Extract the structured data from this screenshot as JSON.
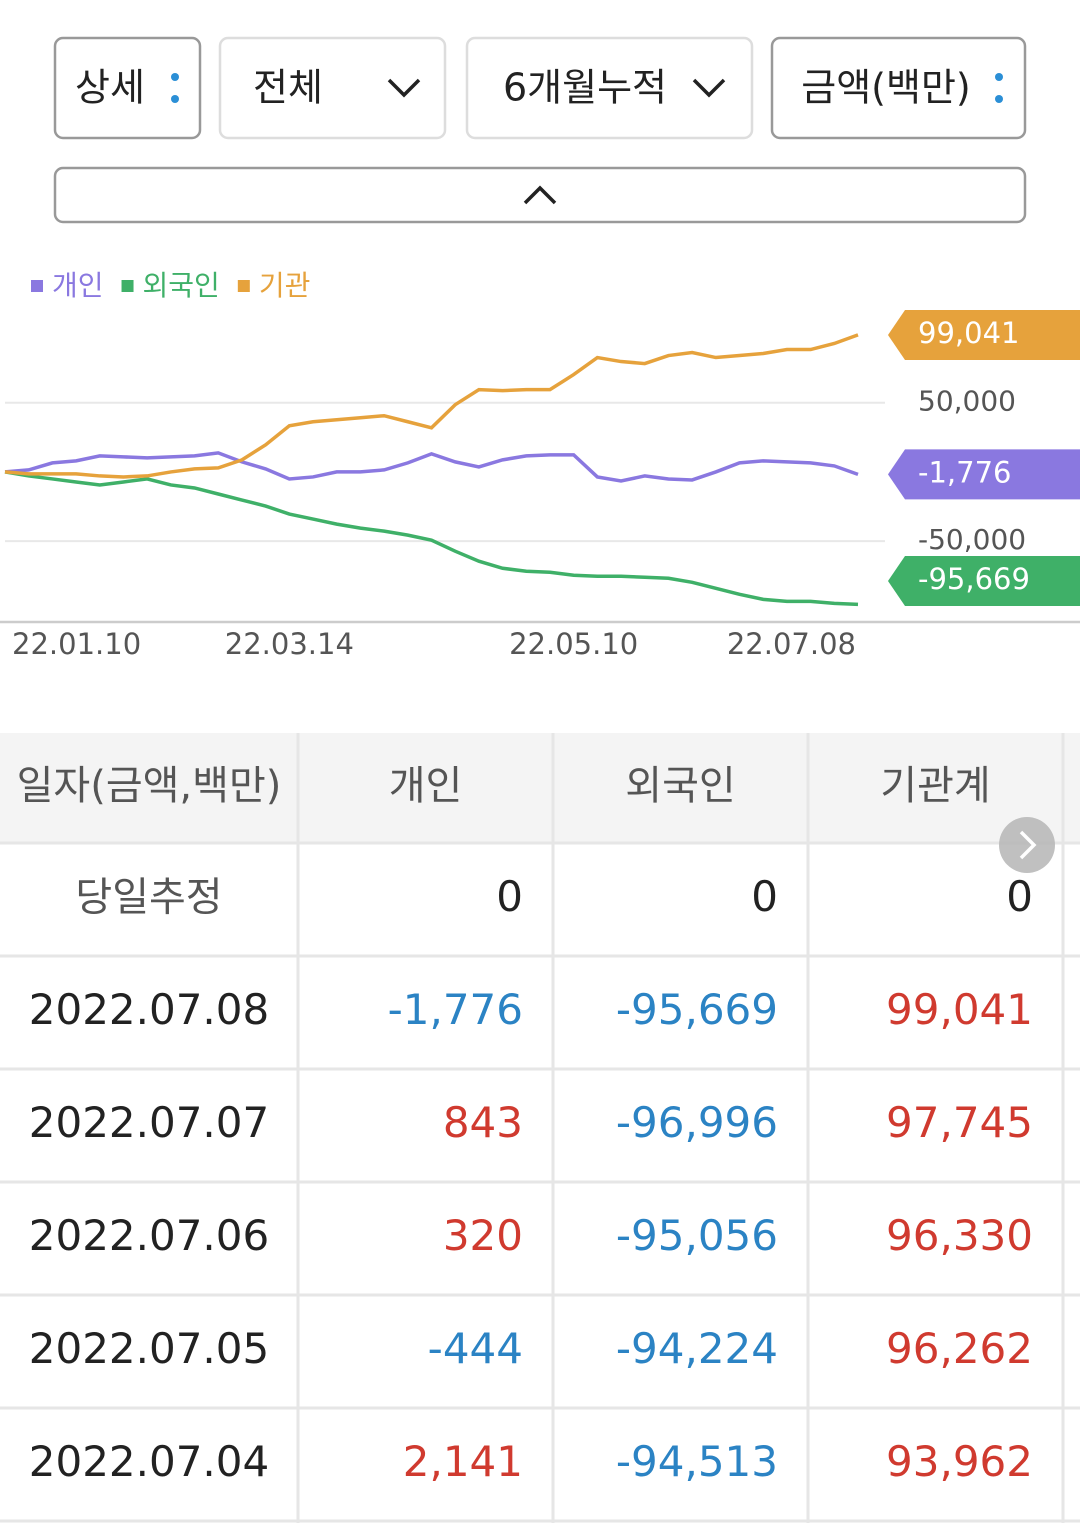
{
  "buttons": [
    {
      "label": "상세"
    },
    {
      "label": "전체"
    },
    {
      "label": "6개월누적"
    },
    {
      "label": "금액(백만)"
    }
  ],
  "chart_data": {
    "type": "line",
    "categories": [
      "22.01.10",
      null,
      null,
      null,
      null,
      null,
      null,
      null,
      null,
      null,
      null,
      null,
      "22.03.14",
      null,
      null,
      null,
      null,
      null,
      null,
      null,
      null,
      null,
      null,
      null,
      "22.05.10",
      null,
      null,
      null,
      null,
      null,
      null,
      null,
      null,
      null,
      null,
      null,
      "22.07.08"
    ],
    "series": [
      {
        "name": "개인",
        "color": "#8a78e0",
        "values": [
          0,
          1450,
          6525,
          7975,
          11600,
          10875,
          10150,
          10875,
          11600,
          13775,
          7250,
          2175,
          -5075,
          -3625,
          0,
          0,
          1450,
          6525,
          13050,
          7250,
          3625,
          8700,
          11600,
          12325,
          12325,
          -3625,
          -6525,
          -2900,
          -5075,
          -5800,
          0,
          6525,
          7975,
          7250,
          6525,
          4350,
          -1776
        ],
        "value_labels": [
          null,
          null,
          null,
          null,
          null,
          null,
          null,
          null,
          null,
          null,
          null,
          null,
          null,
          null,
          null,
          null,
          null,
          null,
          null,
          null,
          null,
          null,
          null,
          null,
          null,
          null,
          null,
          null,
          null,
          null,
          null,
          null,
          null,
          null,
          null,
          null,
          "-1,776"
        ]
      },
      {
        "name": "외국인",
        "color": "#3fb068",
        "values": [
          0,
          -2900,
          -5075,
          -7250,
          -9425,
          -7250,
          -5075,
          -9425,
          -11600,
          -15950,
          -20300,
          -24650,
          -30450,
          -34075,
          -37700,
          -40600,
          -42775,
          -45675,
          -49300,
          -57275,
          -64525,
          -69600,
          -71775,
          -72500,
          -74675,
          -75400,
          -75400,
          -76125,
          -76850,
          -79750,
          -84100,
          -88450,
          -92075,
          -93525,
          -93525,
          -94975,
          -95669
        ],
        "value_labels": [
          null,
          null,
          null,
          null,
          null,
          null,
          null,
          null,
          null,
          null,
          null,
          null,
          null,
          null,
          null,
          null,
          null,
          null,
          null,
          null,
          null,
          null,
          null,
          null,
          null,
          null,
          null,
          null,
          null,
          null,
          null,
          null,
          null,
          null,
          null,
          null,
          "-95,669"
        ]
      },
      {
        "name": "기관",
        "color": "#e6a23c",
        "values": [
          0,
          -1450,
          -1450,
          -1450,
          -2900,
          -3625,
          -2900,
          0,
          2175,
          2900,
          8700,
          19575,
          33350,
          36250,
          37700,
          39150,
          40600,
          36250,
          31900,
          48575,
          59450,
          58725,
          59450,
          59450,
          70325,
          82650,
          79750,
          78300,
          84100,
          86275,
          82650,
          84100,
          85550,
          88450,
          88450,
          92800,
          99041
        ],
        "value_labels": [
          null,
          null,
          null,
          null,
          null,
          null,
          null,
          null,
          null,
          null,
          null,
          null,
          null,
          null,
          null,
          null,
          null,
          null,
          null,
          null,
          null,
          null,
          null,
          null,
          null,
          null,
          null,
          null,
          null,
          null,
          null,
          null,
          null,
          null,
          null,
          null,
          "99,041"
        ]
      }
    ],
    "ylim": [
      -107000,
      117000
    ],
    "yticks": [
      {
        "value": 50000,
        "label": "50,000"
      },
      {
        "value": -50000,
        "label": "-50,000"
      }
    ],
    "grid": true
  },
  "table": {
    "header": [
      "일자(금액,백만)",
      "개인",
      "외국인",
      "기관계"
    ],
    "rows": [
      [
        "당일추정",
        "0",
        "0",
        "0"
      ],
      [
        "2022.07.08",
        "-1,776",
        "-95,669",
        "99,041"
      ],
      [
        "2022.07.07",
        "843",
        "-96,996",
        "97,745"
      ],
      [
        "2022.07.06",
        "320",
        "-95,056",
        "96,330"
      ],
      [
        "2022.07.05",
        "-444",
        "-94,224",
        "96,262"
      ],
      [
        "2022.07.04",
        "2,141",
        "-94,513",
        "93,962"
      ]
    ]
  }
}
